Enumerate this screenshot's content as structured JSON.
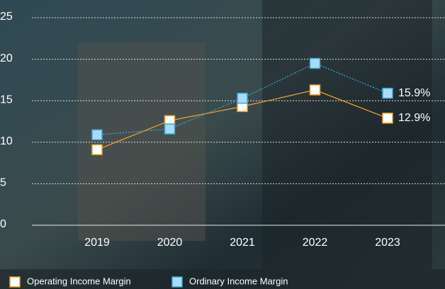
{
  "chart_data": {
    "type": "line",
    "categories": [
      "2019",
      "2020",
      "2021",
      "2022",
      "2023"
    ],
    "series": [
      {
        "name": "Operating Income Margin",
        "color": "#f0a01e",
        "marker_fill": "#ffffff",
        "line_style": "solid",
        "values": [
          9.1,
          12.6,
          14.3,
          16.3,
          12.9
        ],
        "value_labels": [
          null,
          null,
          null,
          null,
          "12.9%"
        ]
      },
      {
        "name": "Ordinary Income Margin",
        "color": "#3aa6dc",
        "marker_fill": "#a9dcf4",
        "line_style": "dotted",
        "values": [
          10.9,
          11.6,
          15.3,
          19.5,
          15.9
        ],
        "value_labels": [
          null,
          null,
          null,
          null,
          "15.9%"
        ]
      }
    ],
    "ylim": [
      0,
      25
    ],
    "yticks": [
      0,
      5,
      10,
      15,
      20,
      25
    ],
    "grid": true
  }
}
